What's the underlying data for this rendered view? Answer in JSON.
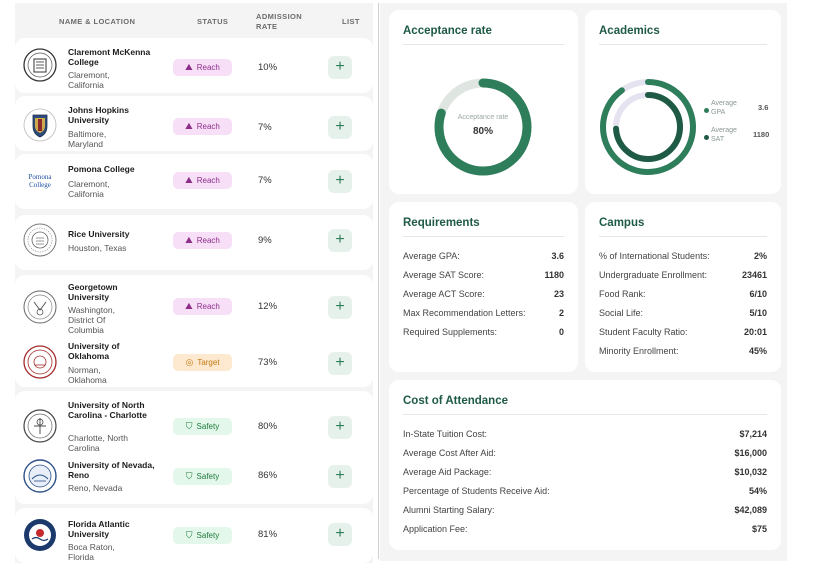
{
  "table": {
    "headers": {
      "name_location": "NAME & LOCATION",
      "status": "STATUS",
      "admission_rate_line1": "ADMISSION",
      "admission_rate_line2": "RATE",
      "list": "LIST"
    },
    "add_label": "+",
    "rows": [
      {
        "name": "Claremont McKenna College",
        "location": "Claremont, California",
        "status": "Reach",
        "rate": "10%"
      },
      {
        "name": "Johns Hopkins University",
        "location": "Baltimore, Maryland",
        "status": "Reach",
        "rate": "7%"
      },
      {
        "name": "Pomona College",
        "location": "Claremont, California",
        "status": "Reach",
        "rate": "7%",
        "logo_text_1": "Pomona",
        "logo_text_2": "College"
      },
      {
        "name": "Rice University",
        "location": "Houston, Texas",
        "status": "Reach",
        "rate": "9%"
      },
      {
        "name": "Georgetown University",
        "location": "Washington, District Of Columbia",
        "status": "Reach",
        "rate": "12%"
      },
      {
        "name": "University of Oklahoma",
        "location": "Norman, Oklahoma",
        "status": "Target",
        "rate": "73%"
      },
      {
        "name": "University of North Carolina - Charlotte",
        "location": "Charlotte, North Carolina",
        "status": "Safety",
        "rate": "80%"
      },
      {
        "name": "University of Nevada, Reno",
        "location": "Reno, Nevada",
        "status": "Safety",
        "rate": "86%"
      },
      {
        "name": "Florida Atlantic University",
        "location": "Boca Raton, Florida",
        "status": "Safety",
        "rate": "81%"
      }
    ]
  },
  "acceptance": {
    "title": "Acceptance rate",
    "center_label": "Acceptance rate",
    "value": "80%",
    "fraction": 0.8
  },
  "academics": {
    "title": "Academics",
    "gpa_label_1": "Average",
    "gpa_label_2": "GPA",
    "gpa_value": "3.6",
    "gpa_fraction": 0.9,
    "sat_label_1": "Average",
    "sat_label_2": "SAT",
    "sat_value": "1180",
    "sat_fraction": 0.74
  },
  "requirements": {
    "title": "Requirements",
    "items": [
      {
        "label": "Average GPA:",
        "value": "3.6"
      },
      {
        "label": "Average SAT Score:",
        "value": "1180"
      },
      {
        "label": "Average ACT Score:",
        "value": "23"
      },
      {
        "label": "Max Recommendation Letters:",
        "value": "2"
      },
      {
        "label": "Required Supplements:",
        "value": "0"
      }
    ]
  },
  "campus": {
    "title": "Campus",
    "items": [
      {
        "label": "% of International Students:",
        "value": "2%"
      },
      {
        "label": "Undergraduate Enrollment:",
        "value": "23461"
      },
      {
        "label": "Food Rank:",
        "value": "6/10"
      },
      {
        "label": "Social Life:",
        "value": "5/10"
      },
      {
        "label": "Student Faculty Ratio:",
        "value": "20:01"
      },
      {
        "label": "Minority Enrollment:",
        "value": "45%"
      }
    ]
  },
  "cost": {
    "title": "Cost of Attendance",
    "items": [
      {
        "label": "In-State Tuition Cost:",
        "value": "$7,214"
      },
      {
        "label": "Average Cost After Aid:",
        "value": "$16,000"
      },
      {
        "label": "Average Aid Package:",
        "value": "$10,032"
      },
      {
        "label": "Percentage of Students Receive Aid:",
        "value": "54%"
      },
      {
        "label": "Alumni Starting Salary:",
        "value": "$42,089"
      },
      {
        "label": "Application Fee:",
        "value": "$75"
      }
    ]
  },
  "colors": {
    "accent": "#2e7d5b",
    "dark_green": "#1e5a44",
    "ring_track": "#dfe6e2",
    "academic_track": "#e6e3f1"
  }
}
